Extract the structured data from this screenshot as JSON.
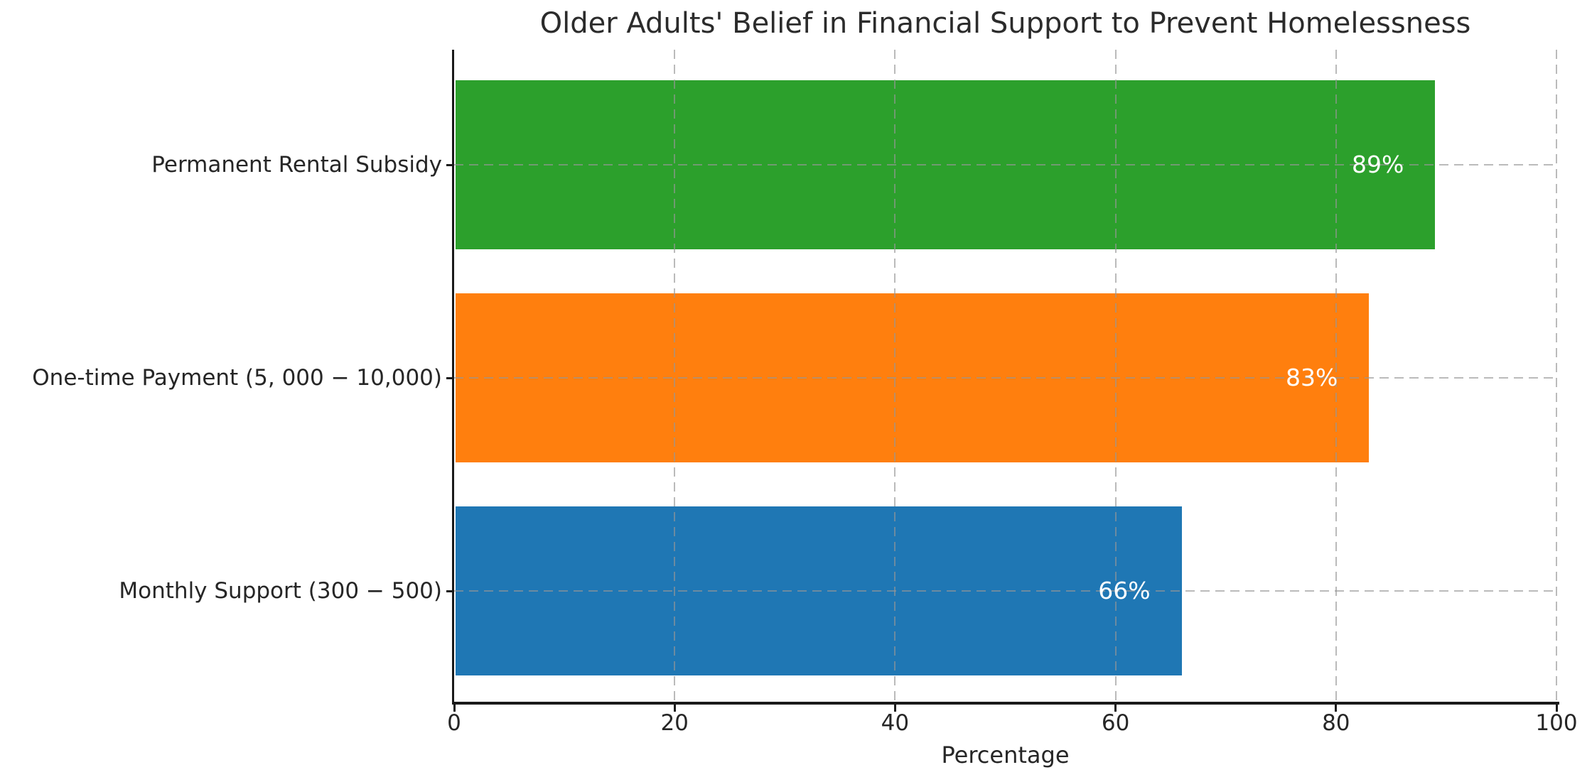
{
  "chart_data": {
    "type": "bar",
    "orientation": "horizontal",
    "title": "Older Adults' Belief in Financial Support to Prevent Homelessness",
    "xlabel": "Percentage",
    "ylabel": "",
    "categories": [
      "Permanent Rental Subsidy",
      "One-time Payment (5, 000 − 10,000)",
      "Monthly Support (300 − 500)"
    ],
    "values": [
      89,
      83,
      66
    ],
    "bar_labels": [
      "89%",
      "83%",
      "66%"
    ],
    "bar_colors": [
      "#2ca02c",
      "#ff7f0e",
      "#1f77b4"
    ],
    "bar_label_color": "#ffffff",
    "xlim": [
      0,
      100
    ],
    "xticks": [
      0,
      20,
      40,
      60,
      80,
      100
    ],
    "grid": {
      "visible": true,
      "style": "dashed",
      "axis": "both",
      "color": "#b0b0b0",
      "above_bars": true
    },
    "legend": "none",
    "background_color": "#ffffff",
    "spine_color": "#1a1a1a"
  }
}
